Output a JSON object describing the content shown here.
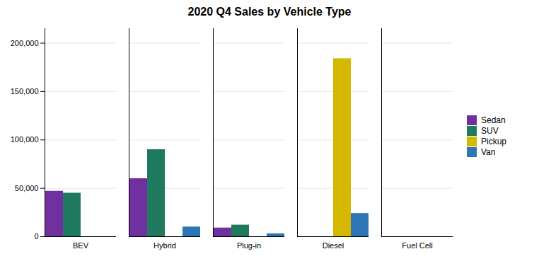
{
  "chart_data": {
    "type": "bar",
    "title": "2020 Q4 Sales by Vehicle Type",
    "categories": [
      "BEV",
      "Hybrid",
      "Plug-in",
      "Diesel",
      "Fuel Cell"
    ],
    "series": [
      {
        "name": "Sedan",
        "color": "#7030A0",
        "values": [
          47000,
          60000,
          9000,
          0,
          0
        ]
      },
      {
        "name": "SUV",
        "color": "#1F7A60",
        "values": [
          45000,
          90000,
          12000,
          0,
          0
        ]
      },
      {
        "name": "Pickup",
        "color": "#D4B800",
        "values": [
          0,
          0,
          0,
          184000,
          0
        ]
      },
      {
        "name": "Van",
        "color": "#2E75B6",
        "values": [
          0,
          10000,
          3000,
          24000,
          0
        ]
      }
    ],
    "ylim": [
      0,
      215000
    ],
    "yticks": [
      0,
      {
        "value": 50000,
        "label": "50,000"
      },
      {
        "value": 100000,
        "label": "100,000"
      },
      {
        "value": 150000,
        "label": "150,000"
      },
      {
        "value": 200000,
        "label": "200,000"
      }
    ],
    "grid": true,
    "legend": "right"
  }
}
